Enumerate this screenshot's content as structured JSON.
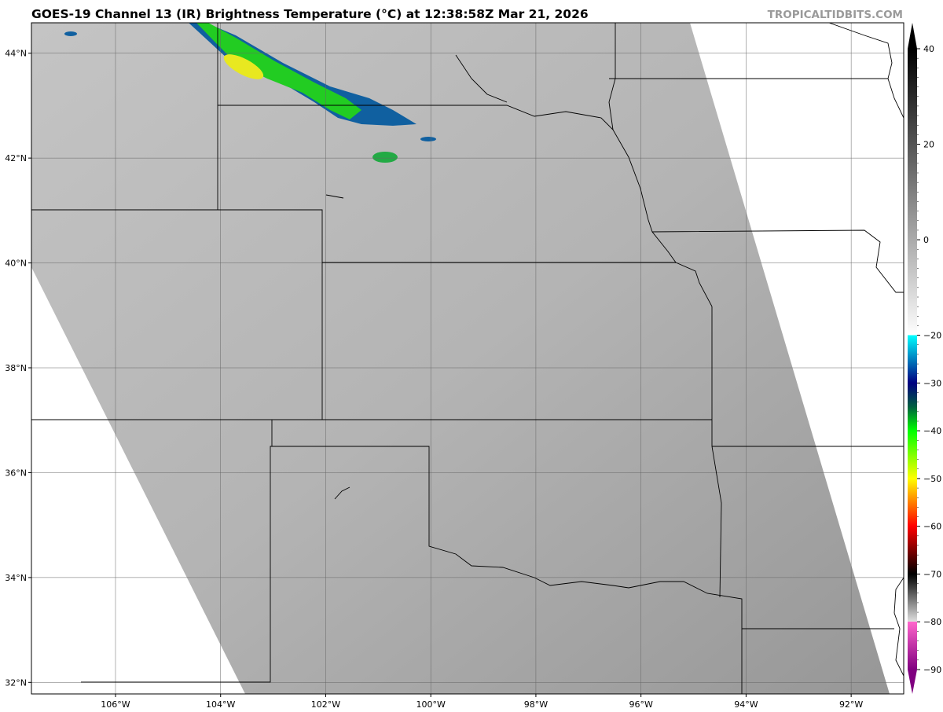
{
  "title": "GOES-19 Channel 13 (IR) Brightness Temperature (°C) at 12:38:58Z Mar 21, 2026",
  "watermark": "TROPICALTIDBITS.COM",
  "map": {
    "lon_range": [
      -107.6,
      -91.0
    ],
    "lat_range": [
      31.78,
      44.58
    ],
    "lon_labels": [
      "106°W",
      "104°W",
      "102°W",
      "100°W",
      "98°W",
      "96°W",
      "94°W",
      "92°W"
    ],
    "lon_values": [
      -106,
      -104,
      -102,
      -100,
      -98,
      -96,
      -94,
      -92
    ],
    "lat_labels": [
      "44°N",
      "42°N",
      "40°N",
      "38°N",
      "36°N",
      "34°N",
      "32°N"
    ],
    "lat_values": [
      44,
      42,
      40,
      38,
      36,
      34,
      32
    ],
    "gridlines": true
  },
  "colorbar": {
    "range": [
      -90,
      40
    ],
    "extend": "both",
    "tick_labels": [
      "40",
      "20",
      "0",
      "−20",
      "−30",
      "−40",
      "−50",
      "−60",
      "−70",
      "−80",
      "−90"
    ],
    "tick_values": [
      40,
      20,
      0,
      -20,
      -30,
      -40,
      -50,
      -60,
      -70,
      -80,
      -90
    ],
    "stops": [
      {
        "t": 40,
        "color": "#000000"
      },
      {
        "t": -20,
        "color": "#ffffff"
      },
      {
        "t": -20,
        "color": "#00ffff"
      },
      {
        "t": -30,
        "color": "#000080"
      },
      {
        "t": -35,
        "color": "#006040"
      },
      {
        "t": -40,
        "color": "#00ff00"
      },
      {
        "t": -50,
        "color": "#ffff00"
      },
      {
        "t": -60,
        "color": "#ff0000"
      },
      {
        "t": -70,
        "color": "#000000"
      },
      {
        "t": -80,
        "color": "#e0e0e0"
      },
      {
        "t": -80,
        "color": "#ff66cc"
      },
      {
        "t": -90,
        "color": "#800080"
      }
    ]
  }
}
